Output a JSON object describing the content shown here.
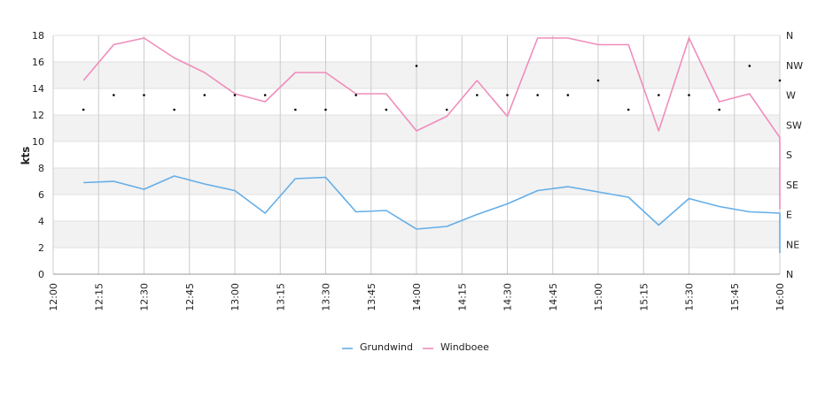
{
  "chart_data": {
    "type": "line",
    "title": "",
    "ylabel": "kts",
    "ylim": [
      0,
      18
    ],
    "yticks": [
      "0",
      "2",
      "4",
      "6",
      "8",
      "10",
      "12",
      "14",
      "16",
      "18"
    ],
    "y2ticks": [
      "N",
      "NE",
      "E",
      "SE",
      "S",
      "SW",
      "W",
      "NW",
      "N"
    ],
    "x": [
      "12:10",
      "12:20",
      "12:30",
      "12:40",
      "12:50",
      "13:00",
      "13:10",
      "13:20",
      "13:30",
      "13:40",
      "13:50",
      "14:00",
      "14:10",
      "14:20",
      "14:30",
      "14:40",
      "14:50",
      "15:00",
      "15:10",
      "15:20",
      "15:30",
      "15:40",
      "15:50",
      "16:00"
    ],
    "xticks": [
      "12:00",
      "12:15",
      "12:30",
      "12:45",
      "13:00",
      "13:15",
      "13:30",
      "13:45",
      "14:00",
      "14:15",
      "14:30",
      "14:45",
      "15:00",
      "15:15",
      "15:30",
      "15:45",
      "16:00"
    ],
    "series": [
      {
        "name": "Grundwind",
        "color": "#64aee8",
        "values": [
          6.9,
          7.0,
          6.4,
          7.4,
          6.8,
          6.3,
          4.6,
          7.2,
          7.3,
          4.7,
          4.8,
          3.4,
          3.6,
          4.5,
          5.3,
          6.3,
          6.6,
          6.2,
          5.8,
          3.7,
          5.7,
          5.1,
          4.7,
          4.6
        ],
        "end_value": 1.6
      },
      {
        "name": "Windboee",
        "color": "#f08dbb",
        "values": [
          14.6,
          17.3,
          17.8,
          16.3,
          15.2,
          13.6,
          13.0,
          15.2,
          15.2,
          13.6,
          13.6,
          10.8,
          11.9,
          14.6,
          11.9,
          17.8,
          17.8,
          17.3,
          17.3,
          10.8,
          17.8,
          13.0,
          13.6,
          10.3
        ],
        "end_value": 4.9
      }
    ],
    "direction_dots": [
      12.4,
      13.5,
      13.5,
      12.4,
      13.5,
      13.5,
      13.5,
      12.4,
      12.4,
      13.5,
      12.4,
      15.7,
      12.4,
      13.5,
      13.5,
      13.5,
      13.5,
      14.6,
      12.4,
      13.5,
      13.5,
      12.4,
      15.7,
      14.6
    ],
    "grid": true,
    "legend": "bottom-center"
  },
  "colors": {
    "band": "#f2f2f2",
    "grid": "#e0e0e0",
    "vgrid": "#cccccc",
    "axis": "#999999",
    "dot": "#000000"
  }
}
